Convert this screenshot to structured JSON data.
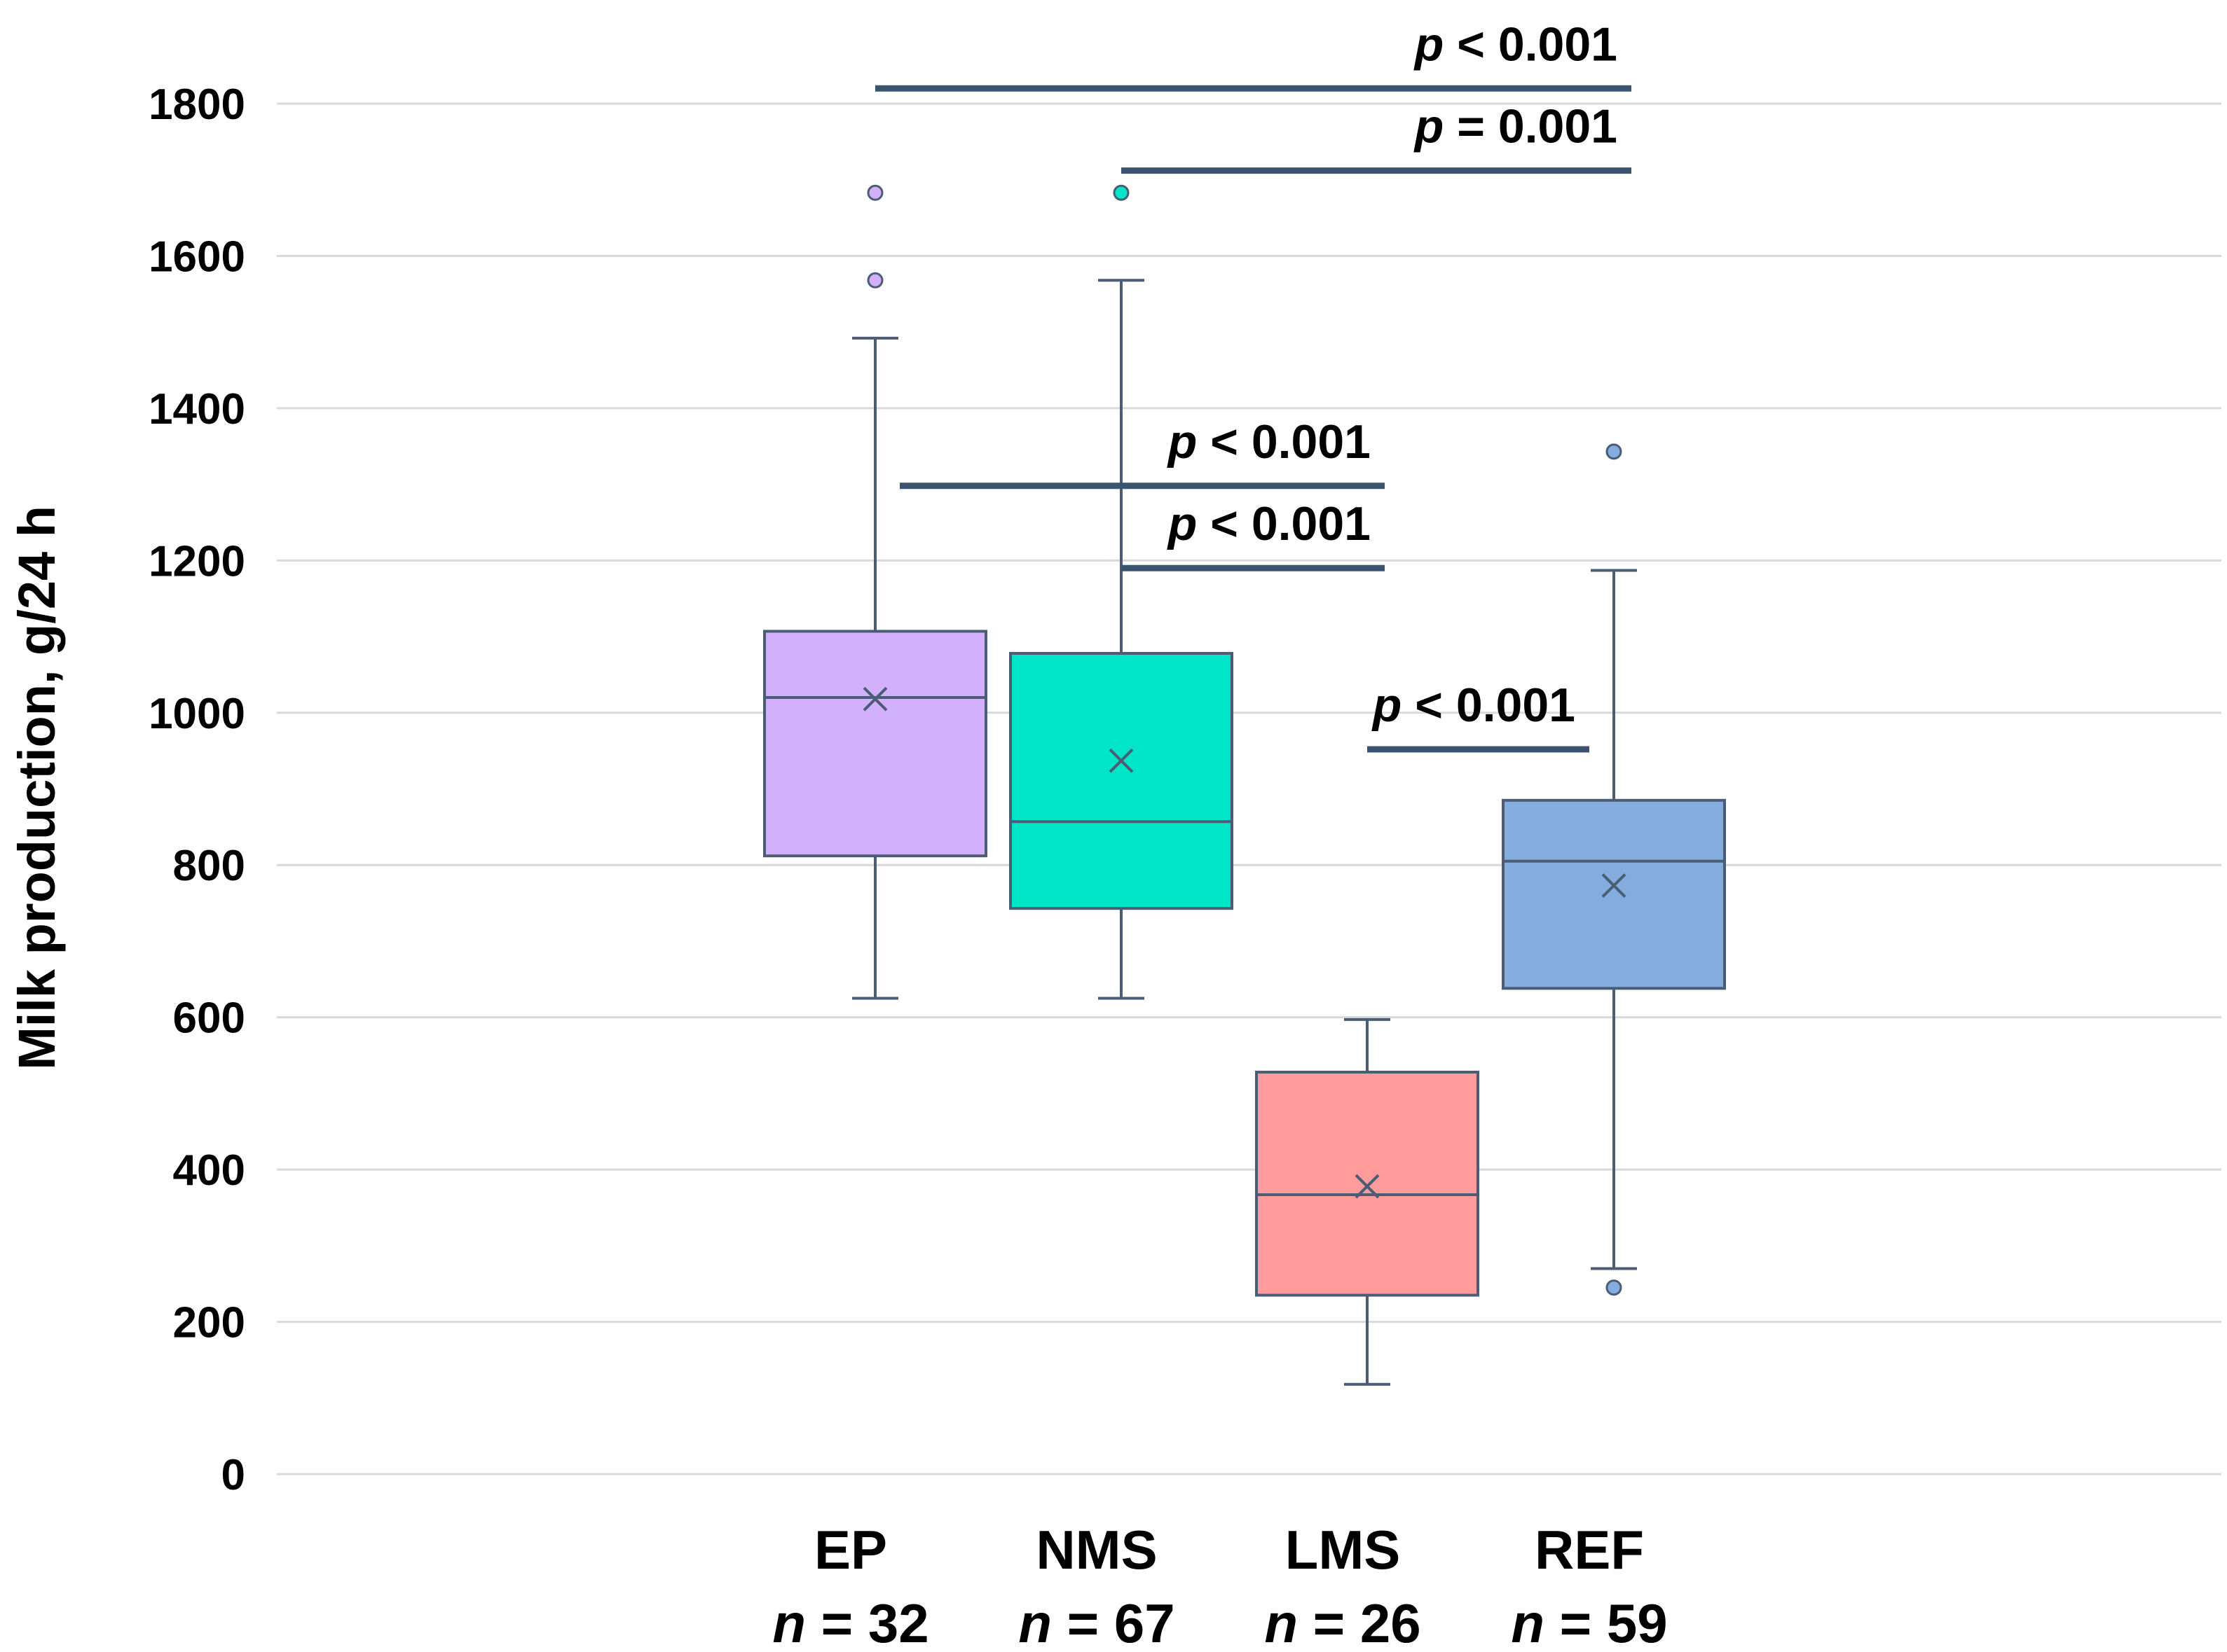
{
  "chart_data": {
    "type": "boxplot",
    "title": "",
    "xlabel": "",
    "ylabel": "Milk production, g/24 h",
    "ylim": [
      0,
      1800
    ],
    "yticks": [
      0,
      200,
      400,
      600,
      800,
      1000,
      1200,
      1400,
      1600,
      1800
    ],
    "grid": true,
    "groups": [
      {
        "name": "EP",
        "n_label": "n = 32",
        "n_symbol": "n",
        "n_value": "= 32",
        "color": "#d3b0fb",
        "q1": 812,
        "median": 1020,
        "q3": 1107,
        "mean": 1018,
        "whisker_low": 625,
        "whisker_high": 1492,
        "outliers": [
          1568,
          1683
        ]
      },
      {
        "name": "NMS",
        "n_label": "n = 67",
        "n_symbol": "n",
        "n_value": "= 67",
        "color": "#00e5c8",
        "q1": 743,
        "median": 857,
        "q3": 1078,
        "mean": 937,
        "whisker_low": 625,
        "whisker_high": 1568,
        "outliers": [
          1683
        ]
      },
      {
        "name": "LMS",
        "n_label": "n = 26",
        "n_symbol": "n",
        "n_value": "= 26",
        "color": "#ff9b9b",
        "q1": 235,
        "median": 367,
        "q3": 528,
        "mean": 378,
        "whisker_low": 118,
        "whisker_high": 597,
        "outliers": []
      },
      {
        "name": "REF",
        "n_label": "n = 59",
        "n_symbol": "n",
        "n_value": "= 59",
        "color": "#85acdf",
        "q1": 638,
        "median": 805,
        "q3": 885,
        "mean": 773,
        "whisker_low": 270,
        "whisker_high": 1187,
        "outliers": [
          1343,
          245
        ]
      }
    ],
    "comparisons": [
      {
        "from": "EP",
        "to": "REF",
        "y": 1820,
        "p_symbol": "p",
        "p_text": "< 0.001"
      },
      {
        "from": "NMS",
        "to": "REF",
        "y": 1712,
        "p_symbol": "p",
        "p_text": "= 0.001"
      },
      {
        "from": "EP",
        "to": "LMS",
        "y": 1298,
        "p_symbol": "p",
        "p_text": "< 0.001"
      },
      {
        "from": "NMS",
        "to": "LMS",
        "y": 1190,
        "p_symbol": "p",
        "p_text": "< 0.001"
      },
      {
        "from": "LMS",
        "to": "REF",
        "y": 952,
        "p_symbol": "p",
        "p_text": "< 0.001"
      }
    ],
    "colors": {
      "stroke": "#4a5d75",
      "bracket": "#3a5470",
      "grid": "#d9d9d9"
    }
  }
}
